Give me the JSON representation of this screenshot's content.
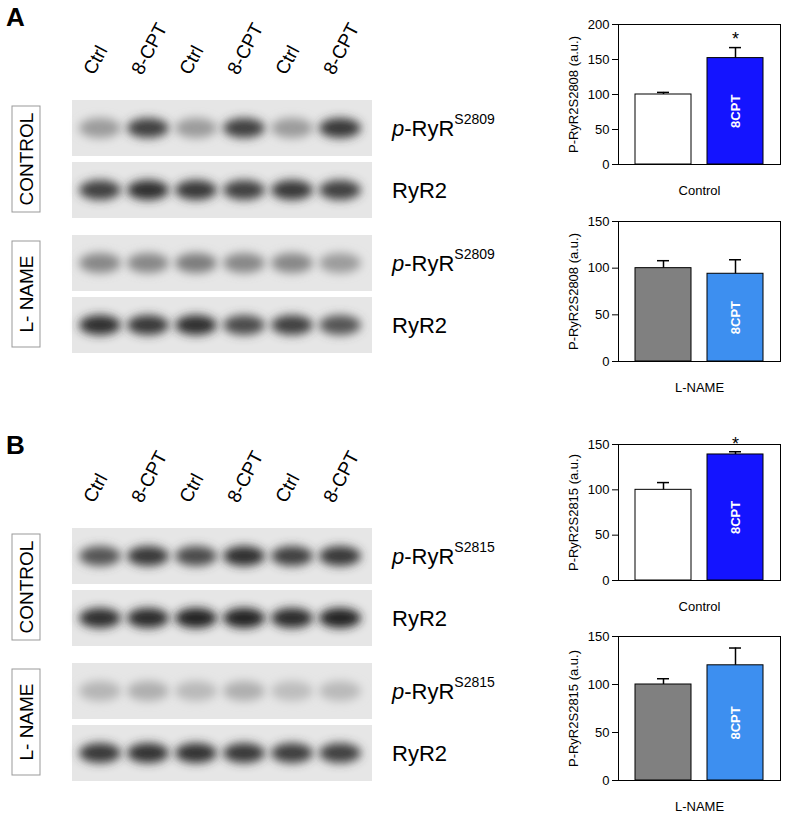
{
  "panels": [
    {
      "label": "A",
      "lanes": [
        "Ctrl",
        "8-CPT",
        "Ctrl",
        "8-CPT",
        "Ctrl",
        "8-CPT"
      ],
      "groups": [
        {
          "name": "CONTROL",
          "rows": [
            {
              "label": "p-RyR",
              "sup": "S2809"
            },
            {
              "label": "RyR2"
            }
          ]
        },
        {
          "name": "L- NAME",
          "rows": [
            {
              "label": "p-RyR",
              "sup": "S2809"
            },
            {
              "label": "RyR2"
            }
          ]
        }
      ]
    },
    {
      "label": "B",
      "lanes": [
        "Ctrl",
        "8-CPT",
        "Ctrl",
        "8-CPT",
        "Ctrl",
        "8-CPT"
      ],
      "groups": [
        {
          "name": "CONTROL",
          "rows": [
            {
              "label": "p-RyR",
              "sup": "S2815"
            },
            {
              "label": "RyR2"
            }
          ]
        },
        {
          "name": "L- NAME",
          "rows": [
            {
              "label": "p-RyR",
              "sup": "S2815"
            },
            {
              "label": "RyR2"
            }
          ]
        }
      ]
    }
  ],
  "chart_data": [
    {
      "type": "bar",
      "y_label": "P-RyR2S2808 (a.u.)",
      "x_label": "Control",
      "categories": [
        null,
        "8CPT"
      ],
      "values": [
        100,
        152
      ],
      "errors": [
        3,
        15
      ],
      "annotations": [
        null,
        "*"
      ],
      "colors": [
        "#ffffff",
        "#1414ff"
      ],
      "ylim": [
        0,
        200
      ],
      "yticks": [
        0,
        50,
        100,
        150,
        200
      ]
    },
    {
      "type": "bar",
      "y_label": "P-RyR2S2808 (a.u.)",
      "x_label": "L-NAME",
      "categories": [
        null,
        "8CPT"
      ],
      "values": [
        100,
        94
      ],
      "errors": [
        8,
        15
      ],
      "annotations": [
        null,
        null
      ],
      "colors": [
        "#808080",
        "#3d8ff0"
      ],
      "ylim": [
        0,
        150
      ],
      "yticks": [
        0,
        50,
        100,
        150
      ]
    },
    {
      "type": "bar",
      "y_label": "P-RyR2S2815 (a.u.)",
      "x_label": "Control",
      "categories": [
        null,
        "8CPT"
      ],
      "values": [
        100,
        139
      ],
      "errors": [
        8,
        3
      ],
      "annotations": [
        null,
        "*"
      ],
      "colors": [
        "#ffffff",
        "#1414ff"
      ],
      "ylim": [
        0,
        150
      ],
      "yticks": [
        0,
        50,
        100,
        150
      ]
    },
    {
      "type": "bar",
      "y_label": "P-RyR2S2815 (a.u.)",
      "x_label": "L-NAME",
      "categories": [
        null,
        "8CPT"
      ],
      "values": [
        100,
        120
      ],
      "errors": [
        6,
        18
      ],
      "annotations": [
        null,
        null
      ],
      "colors": [
        "#808080",
        "#3d8ff0"
      ],
      "ylim": [
        0,
        150
      ],
      "yticks": [
        0,
        50,
        100,
        150
      ]
    }
  ]
}
